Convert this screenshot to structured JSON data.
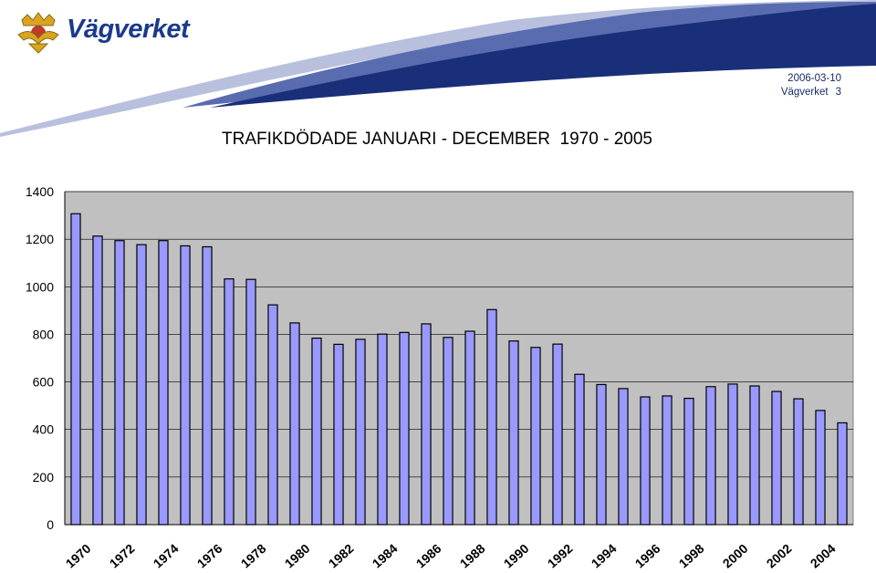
{
  "header": {
    "logo_text": "Vägverket",
    "date": "2006-03-10",
    "org": "Vägverket",
    "page_number": "3",
    "logo_icon": "crown-shield-icon"
  },
  "colors": {
    "wave_dark": "#1a2f7a",
    "wave_mid": "#4a5ea8",
    "wave_light": "#9aa6cf",
    "plot_bg": "#c0c0c0",
    "bar_fill": "#9999ff",
    "bar_stroke": "#000000"
  },
  "chart_data": {
    "type": "bar",
    "title": "TRAFIKDÖDADE JANUARI - DECEMBER  1970 - 2005",
    "xlabel": "",
    "ylabel": "",
    "ylim": [
      0,
      1400
    ],
    "yticks": [
      0,
      200,
      400,
      600,
      800,
      1000,
      1200,
      1400
    ],
    "grid": true,
    "legend": "none",
    "categories": [
      "1970",
      "1971",
      "1972",
      "1973",
      "1974",
      "1975",
      "1976",
      "1977",
      "1978",
      "1979",
      "1980",
      "1981",
      "1982",
      "1983",
      "1984",
      "1985",
      "1986",
      "1987",
      "1988",
      "1989",
      "1990",
      "1991",
      "1992",
      "1993",
      "1994",
      "1995",
      "1996",
      "1997",
      "1998",
      "1999",
      "2000",
      "2001",
      "2002",
      "2003",
      "2004",
      "2005"
    ],
    "shown_tick_labels": [
      "1970",
      "1972",
      "1974",
      "1976",
      "1978",
      "1980",
      "1982",
      "1984",
      "1986",
      "1988",
      "1990",
      "1992",
      "1994",
      "1996",
      "1998",
      "2000",
      "2002",
      "2004"
    ],
    "values": [
      1307,
      1213,
      1194,
      1177,
      1194,
      1172,
      1168,
      1033,
      1031,
      924,
      848,
      784,
      758,
      779,
      801,
      808,
      844,
      787,
      813,
      904,
      772,
      745,
      759,
      632,
      589,
      572,
      537,
      541,
      531,
      580,
      591,
      583,
      560,
      529,
      480,
      428
    ]
  }
}
